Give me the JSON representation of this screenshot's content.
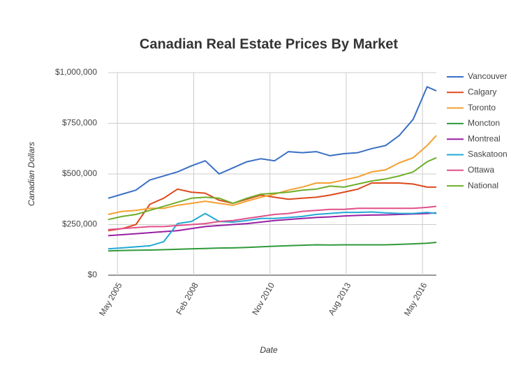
{
  "chart_data": {
    "type": "line",
    "title": "Canadian Real Estate Prices By Market",
    "x_label": "Date",
    "y_label": "Canadian Dollars",
    "x": [
      "Jan 2005",
      "Jul 2005",
      "Jan 2006",
      "Jul 2006",
      "Jan 2007",
      "Jul 2007",
      "Jan 2008",
      "Jul 2008",
      "Jan 2009",
      "Jul 2009",
      "Jan 2010",
      "Jul 2010",
      "Jan 2011",
      "Jul 2011",
      "Jan 2012",
      "Jul 2012",
      "Jan 2013",
      "Jul 2013",
      "Jan 2014",
      "Jul 2014",
      "Jan 2015",
      "Jul 2015",
      "Jan 2016",
      "Jul 2016",
      "Nov 2016"
    ],
    "xlim": [
      "Jan 2005",
      "Nov 2016"
    ],
    "xticks": [
      "May 2005",
      "Feb 2008",
      "Nov 2010",
      "Aug 2013",
      "May 2016"
    ],
    "ylim": [
      0,
      1000000
    ],
    "yticks": [
      {
        "value": 0,
        "label": "$0"
      },
      {
        "value": 250000,
        "label": "$250,000"
      },
      {
        "value": 500000,
        "label": "$500,000"
      },
      {
        "value": 750000,
        "label": "$750,000"
      },
      {
        "value": 1000000,
        "label": "$1,000,000"
      }
    ],
    "grid": true,
    "legend": "right",
    "series": [
      {
        "name": "Vancouver",
        "color": "#3a6fc4",
        "values": [
          380000,
          400000,
          420000,
          470000,
          490000,
          510000,
          540000,
          565000,
          500000,
          530000,
          560000,
          575000,
          565000,
          610000,
          605000,
          610000,
          590000,
          600000,
          605000,
          625000,
          640000,
          690000,
          770000,
          930000,
          910000
        ]
      },
      {
        "name": "Calgary",
        "color": "#dc4a1e",
        "values": [
          220000,
          230000,
          250000,
          350000,
          380000,
          425000,
          410000,
          405000,
          370000,
          355000,
          375000,
          395000,
          385000,
          375000,
          380000,
          385000,
          395000,
          410000,
          425000,
          455000,
          455000,
          455000,
          450000,
          435000,
          435000
        ]
      },
      {
        "name": "Toronto",
        "color": "#f5a031",
        "values": [
          300000,
          315000,
          320000,
          330000,
          330000,
          345000,
          355000,
          365000,
          355000,
          345000,
          365000,
          385000,
          400000,
          420000,
          435000,
          455000,
          455000,
          470000,
          485000,
          510000,
          520000,
          555000,
          580000,
          640000,
          690000
        ]
      },
      {
        "name": "Moncton",
        "color": "#2f9a3a",
        "values": [
          120000,
          122000,
          123000,
          124000,
          126000,
          128000,
          130000,
          132000,
          134000,
          135000,
          137000,
          140000,
          143000,
          146000,
          148000,
          150000,
          149000,
          150000,
          150000,
          150000,
          150000,
          152000,
          155000,
          158000,
          162000
        ]
      },
      {
        "name": "Montreal",
        "color": "#9a1fa3",
        "values": [
          195000,
          200000,
          205000,
          210000,
          215000,
          220000,
          230000,
          240000,
          245000,
          250000,
          255000,
          262000,
          270000,
          275000,
          280000,
          285000,
          288000,
          292000,
          295000,
          297000,
          298000,
          300000,
          302000,
          305000,
          308000
        ]
      },
      {
        "name": "Saskatoon",
        "color": "#23a9d6",
        "values": [
          130000,
          135000,
          140000,
          145000,
          165000,
          255000,
          265000,
          305000,
          265000,
          262000,
          270000,
          280000,
          280000,
          285000,
          290000,
          300000,
          305000,
          310000,
          310000,
          312000,
          308000,
          305000,
          305000,
          310000,
          305000
        ]
      },
      {
        "name": "Ottawa",
        "color": "#e2508a",
        "values": [
          225000,
          230000,
          235000,
          240000,
          240000,
          245000,
          250000,
          255000,
          265000,
          270000,
          280000,
          290000,
          300000,
          305000,
          315000,
          320000,
          325000,
          325000,
          330000,
          330000,
          330000,
          330000,
          330000,
          335000,
          340000
        ]
      },
      {
        "name": "National",
        "color": "#6fae2a",
        "values": [
          275000,
          290000,
          300000,
          320000,
          340000,
          360000,
          380000,
          385000,
          380000,
          355000,
          380000,
          400000,
          405000,
          410000,
          420000,
          425000,
          440000,
          435000,
          450000,
          465000,
          475000,
          490000,
          510000,
          560000,
          580000
        ]
      }
    ]
  }
}
